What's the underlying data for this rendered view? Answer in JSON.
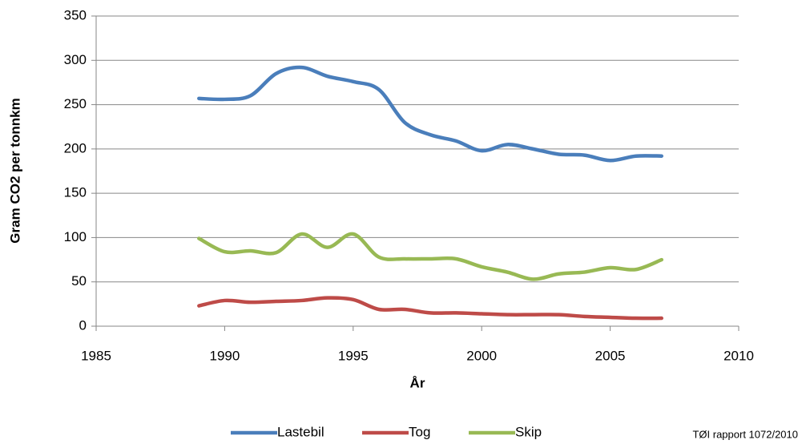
{
  "chart_data": {
    "type": "line",
    "x": [
      1989,
      1990,
      1991,
      1992,
      1993,
      1994,
      1995,
      1996,
      1997,
      1998,
      1999,
      2000,
      2001,
      2002,
      2003,
      2004,
      2005,
      2006,
      2007
    ],
    "series": [
      {
        "name": "Lastebil",
        "color": "#4a7ebb",
        "values": [
          257,
          256,
          260,
          285,
          292,
          282,
          276,
          267,
          230,
          216,
          209,
          198,
          205,
          200,
          194,
          193,
          187,
          192,
          192
        ]
      },
      {
        "name": "Tog",
        "color": "#be4b48",
        "values": [
          23,
          29,
          27,
          28,
          29,
          32,
          30,
          19,
          19,
          15,
          15,
          14,
          13,
          13,
          13,
          11,
          10,
          9,
          9
        ]
      },
      {
        "name": "Skip",
        "color": "#98b954",
        "values": [
          99,
          84,
          85,
          83,
          104,
          89,
          104,
          78,
          76,
          76,
          76,
          67,
          61,
          53,
          59,
          61,
          66,
          64,
          75
        ]
      }
    ],
    "xlim": [
      1985,
      2010
    ],
    "xticks": [
      1985,
      1990,
      1995,
      2000,
      2005,
      2010
    ],
    "ylim": [
      0,
      350
    ],
    "yticks": [
      0,
      50,
      100,
      150,
      200,
      250,
      300,
      350
    ],
    "xlabel": "År",
    "ylabel": "Gram  CO2 per  tonnkm",
    "grid": true,
    "legend": "bottom",
    "note": "TØI rapport 1072/2010"
  }
}
